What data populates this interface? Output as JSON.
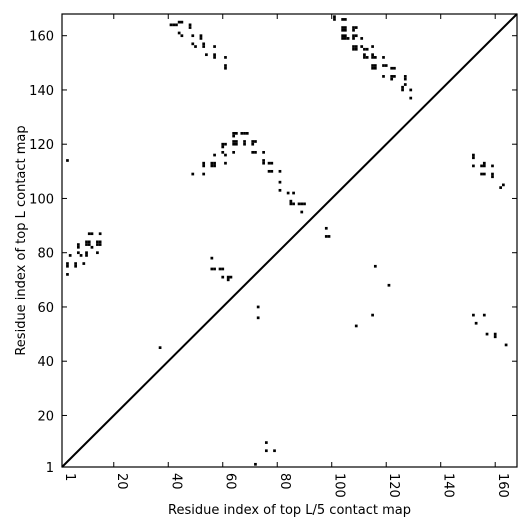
{
  "chart_data": {
    "type": "scatter",
    "title": "",
    "xlabel": "Residue index of top L/5 contact map",
    "ylabel": "Residue index of top L contact map",
    "xlim": [
      1,
      168
    ],
    "ylim": [
      1,
      168
    ],
    "xticks": [
      1,
      20,
      40,
      60,
      80,
      100,
      120,
      140,
      160
    ],
    "yticks": [
      1,
      20,
      40,
      60,
      80,
      100,
      120,
      140,
      160
    ],
    "diagonal": true,
    "marker_color": "#000000",
    "points": [
      [
        3,
        114
      ],
      [
        3,
        76
      ],
      [
        3,
        75
      ],
      [
        3,
        72
      ],
      [
        4,
        79
      ],
      [
        6,
        76
      ],
      [
        6,
        75
      ],
      [
        7,
        83
      ],
      [
        7,
        82
      ],
      [
        7,
        80
      ],
      [
        8,
        79
      ],
      [
        10,
        84
      ],
      [
        10,
        83
      ],
      [
        10,
        80
      ],
      [
        10,
        79
      ],
      [
        9,
        76
      ],
      [
        11,
        87
      ],
      [
        11,
        84
      ],
      [
        11,
        83
      ],
      [
        12,
        87
      ],
      [
        12,
        82
      ],
      [
        14,
        84
      ],
      [
        14,
        83
      ],
      [
        14,
        80
      ],
      [
        15,
        87
      ],
      [
        15,
        84
      ],
      [
        15,
        83
      ],
      [
        37,
        45
      ],
      [
        41,
        164
      ],
      [
        42,
        164
      ],
      [
        43,
        164
      ],
      [
        44,
        165
      ],
      [
        45,
        165
      ],
      [
        44,
        161
      ],
      [
        45,
        160
      ],
      [
        48,
        164
      ],
      [
        48,
        163
      ],
      [
        49,
        160
      ],
      [
        49,
        157
      ],
      [
        50,
        156
      ],
      [
        52,
        160
      ],
      [
        52,
        159
      ],
      [
        53,
        157
      ],
      [
        53,
        156
      ],
      [
        54,
        153
      ],
      [
        57,
        156
      ],
      [
        57,
        153
      ],
      [
        57,
        152
      ],
      [
        61,
        152
      ],
      [
        61,
        149
      ],
      [
        61,
        148
      ],
      [
        49,
        109
      ],
      [
        53,
        113
      ],
      [
        53,
        112
      ],
      [
        53,
        109
      ],
      [
        56,
        113
      ],
      [
        56,
        112
      ],
      [
        57,
        116
      ],
      [
        57,
        113
      ],
      [
        57,
        112
      ],
      [
        60,
        120
      ],
      [
        60,
        119
      ],
      [
        60,
        117
      ],
      [
        61,
        120
      ],
      [
        61,
        116
      ],
      [
        61,
        113
      ],
      [
        64,
        124
      ],
      [
        64,
        123
      ],
      [
        64,
        121
      ],
      [
        64,
        120
      ],
      [
        64,
        117
      ],
      [
        65,
        124
      ],
      [
        65,
        121
      ],
      [
        65,
        120
      ],
      [
        67,
        124
      ],
      [
        68,
        124
      ],
      [
        68,
        121
      ],
      [
        68,
        120
      ],
      [
        69,
        124
      ],
      [
        71,
        121
      ],
      [
        71,
        120
      ],
      [
        71,
        117
      ],
      [
        72,
        121
      ],
      [
        72,
        117
      ],
      [
        75,
        117
      ],
      [
        75,
        114
      ],
      [
        75,
        113
      ],
      [
        77,
        113
      ],
      [
        77,
        110
      ],
      [
        78,
        113
      ],
      [
        78,
        110
      ],
      [
        81,
        110
      ],
      [
        81,
        106
      ],
      [
        81,
        103
      ],
      [
        84,
        102
      ],
      [
        85,
        99
      ],
      [
        85,
        98
      ],
      [
        86,
        102
      ],
      [
        86,
        98
      ],
      [
        88,
        98
      ],
      [
        89,
        98
      ],
      [
        89,
        95
      ],
      [
        90,
        98
      ],
      [
        98,
        89
      ],
      [
        98,
        86
      ],
      [
        99,
        86
      ],
      [
        56,
        78
      ],
      [
        56,
        74
      ],
      [
        57,
        74
      ],
      [
        59,
        74
      ],
      [
        60,
        74
      ],
      [
        60,
        71
      ],
      [
        62,
        71
      ],
      [
        62,
        70
      ],
      [
        63,
        71
      ],
      [
        73,
        60
      ],
      [
        73,
        56
      ],
      [
        72,
        2
      ],
      [
        76,
        7
      ],
      [
        76,
        10
      ],
      [
        79,
        7
      ],
      [
        101,
        167
      ],
      [
        101,
        166
      ],
      [
        104,
        166
      ],
      [
        105,
        166
      ],
      [
        104,
        163
      ],
      [
        104,
        162
      ],
      [
        105,
        163
      ],
      [
        105,
        162
      ],
      [
        104,
        160
      ],
      [
        104,
        159
      ],
      [
        105,
        160
      ],
      [
        105,
        159
      ],
      [
        106,
        159
      ],
      [
        108,
        163
      ],
      [
        109,
        163
      ],
      [
        108,
        162
      ],
      [
        108,
        160
      ],
      [
        108,
        159
      ],
      [
        109,
        160
      ],
      [
        108,
        156
      ],
      [
        108,
        155
      ],
      [
        109,
        156
      ],
      [
        109,
        155
      ],
      [
        111,
        159
      ],
      [
        111,
        156
      ],
      [
        112,
        155
      ],
      [
        112,
        153
      ],
      [
        112,
        152
      ],
      [
        113,
        155
      ],
      [
        113,
        152
      ],
      [
        115,
        156
      ],
      [
        115,
        153
      ],
      [
        115,
        152
      ],
      [
        115,
        149
      ],
      [
        115,
        148
      ],
      [
        116,
        152
      ],
      [
        116,
        149
      ],
      [
        116,
        148
      ],
      [
        119,
        152
      ],
      [
        119,
        149
      ],
      [
        119,
        145
      ],
      [
        120,
        149
      ],
      [
        122,
        148
      ],
      [
        122,
        145
      ],
      [
        122,
        144
      ],
      [
        123,
        148
      ],
      [
        123,
        145
      ],
      [
        126,
        141
      ],
      [
        126,
        140
      ],
      [
        127,
        145
      ],
      [
        127,
        144
      ],
      [
        127,
        142
      ],
      [
        129,
        140
      ],
      [
        129,
        137
      ],
      [
        109,
        53
      ],
      [
        115,
        57
      ],
      [
        116,
        75
      ],
      [
        121,
        68
      ],
      [
        152,
        116
      ],
      [
        152,
        115
      ],
      [
        152,
        112
      ],
      [
        152,
        57
      ],
      [
        153,
        54
      ],
      [
        155,
        112
      ],
      [
        155,
        109
      ],
      [
        156,
        113
      ],
      [
        156,
        112
      ],
      [
        156,
        109
      ],
      [
        156,
        57
      ],
      [
        157,
        50
      ],
      [
        159,
        112
      ],
      [
        159,
        109
      ],
      [
        159,
        108
      ],
      [
        160,
        50
      ],
      [
        160,
        49
      ],
      [
        162,
        104
      ],
      [
        163,
        105
      ],
      [
        164,
        46
      ]
    ]
  }
}
